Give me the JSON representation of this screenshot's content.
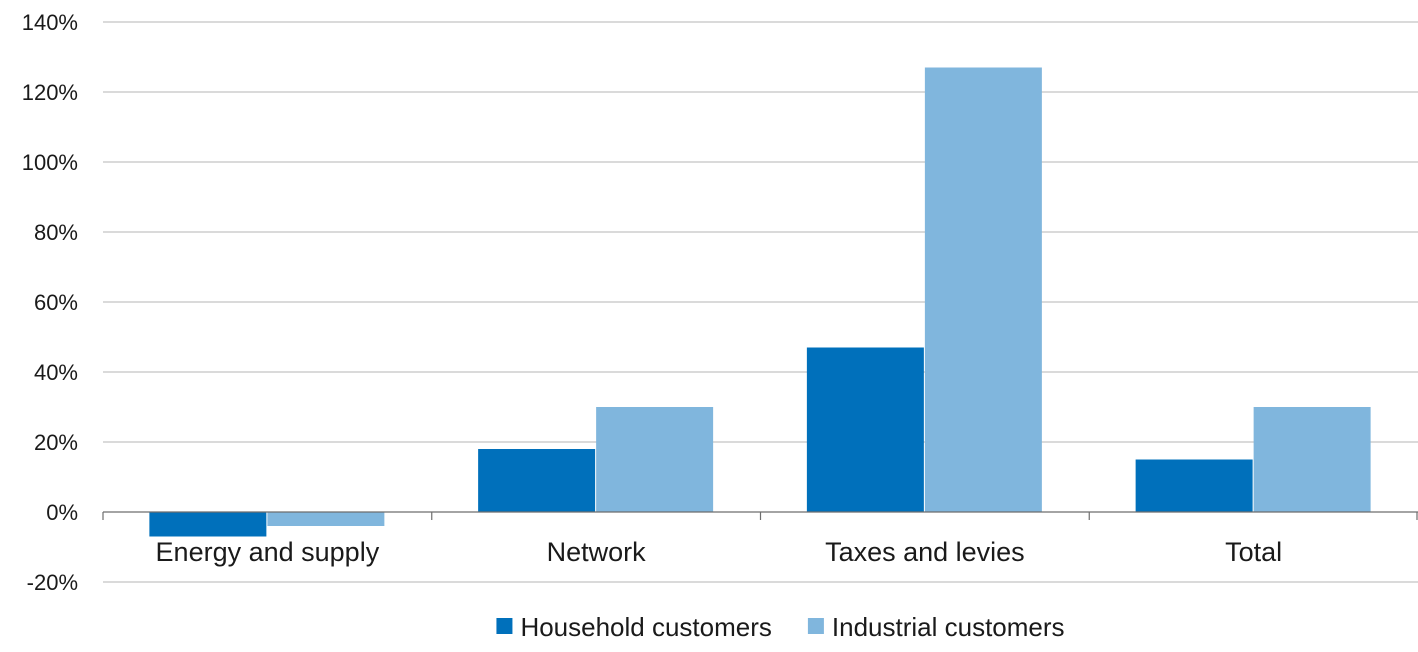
{
  "chart_data": {
    "type": "bar",
    "title": "",
    "xlabel": "",
    "ylabel": "",
    "categories": [
      "Energy and supply",
      "Network",
      "Taxes and levies",
      "Total"
    ],
    "series": [
      {
        "name": "Household customers",
        "color": "#0070bb",
        "values": [
          -7,
          18,
          47,
          15
        ]
      },
      {
        "name": "Industrial customers",
        "color": "#80b6dd",
        "values": [
          -4,
          30,
          127,
          30
        ]
      }
    ],
    "ylim": [
      -20,
      140
    ],
    "yticks": [
      -20,
      0,
      20,
      40,
      60,
      80,
      100,
      120,
      140
    ],
    "ytick_labels": [
      "-20%",
      "0%",
      "20%",
      "40%",
      "60%",
      "80%",
      "100%",
      "120%",
      "140%"
    ],
    "grid": true,
    "legend_position": "bottom-center"
  }
}
